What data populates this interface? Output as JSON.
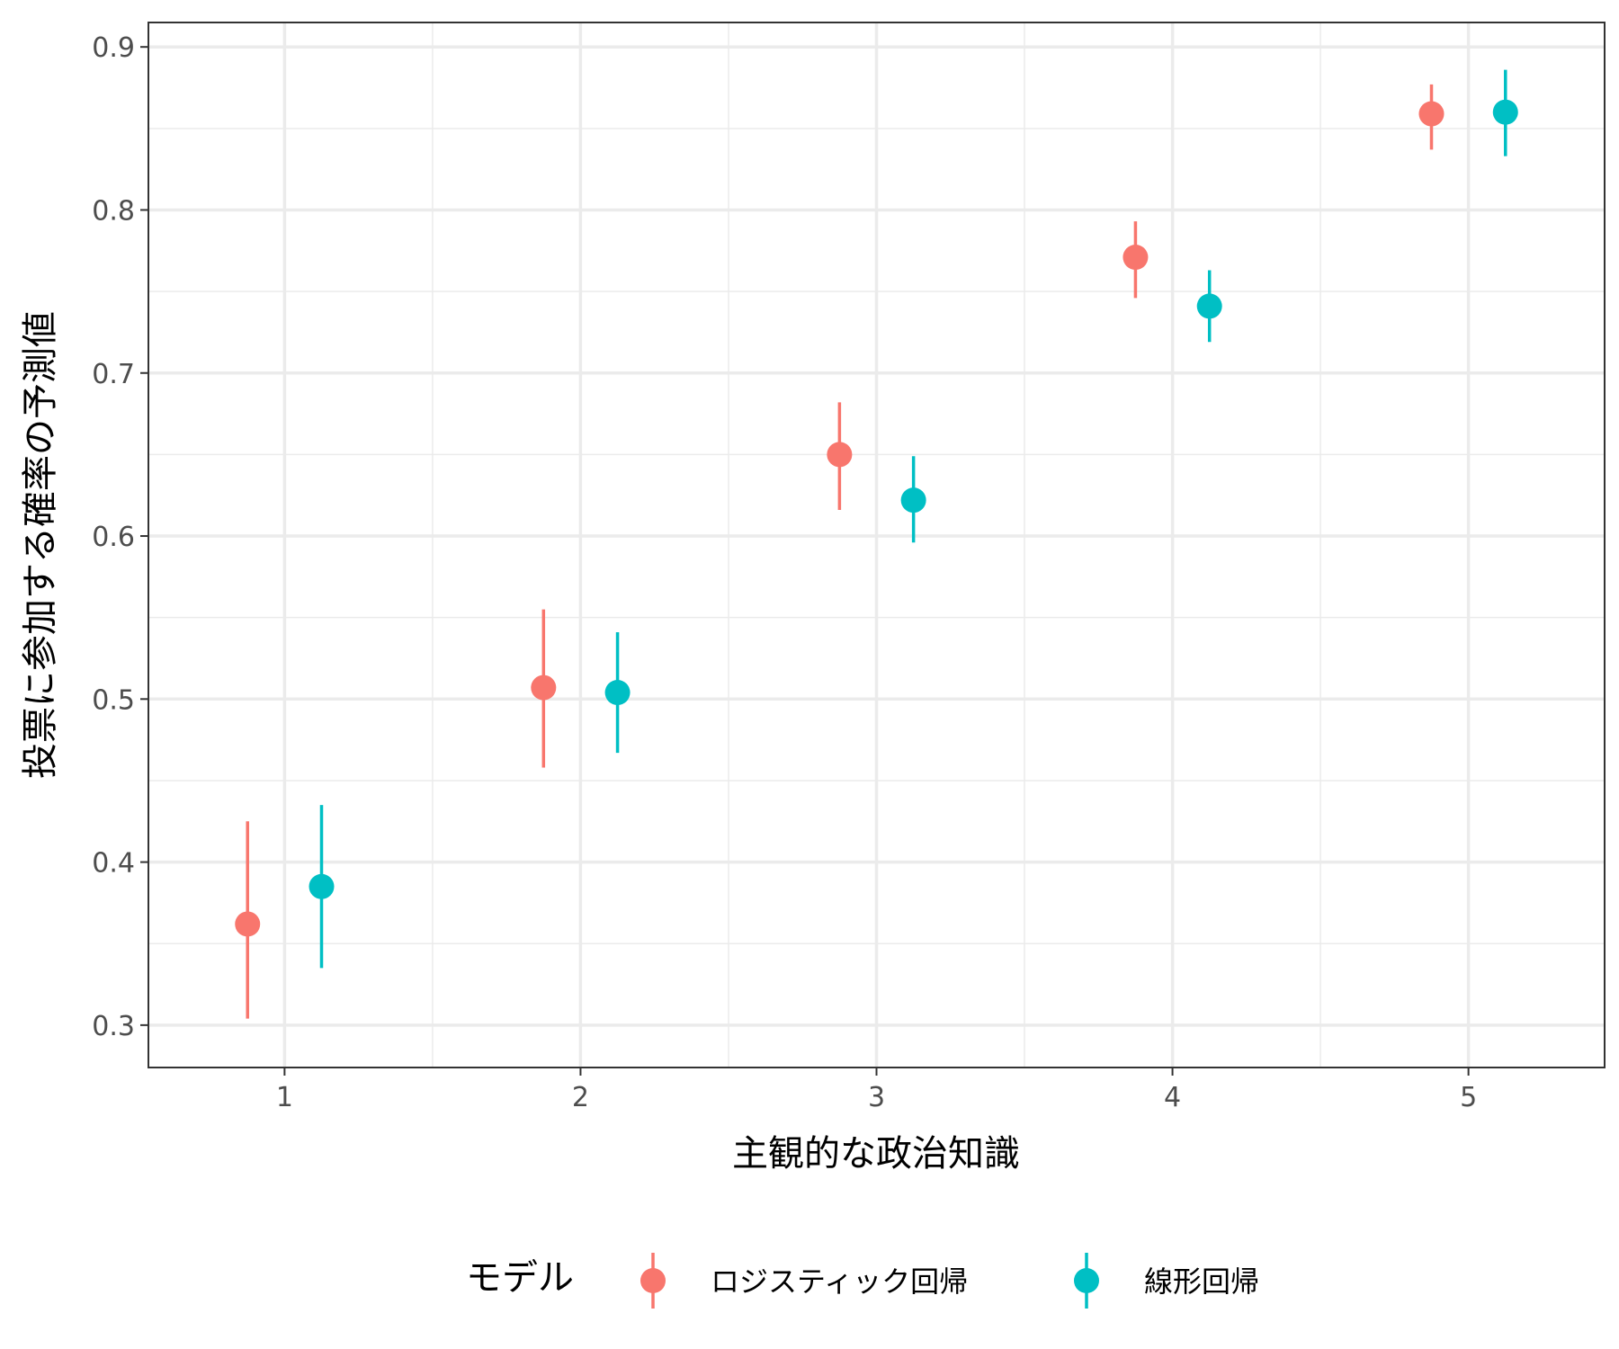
{
  "chart_data": {
    "type": "scatter",
    "subtype": "pointrange",
    "x": [
      1,
      2,
      3,
      4,
      5
    ],
    "xlabel": "主観的な政治知識",
    "ylabel": "投票に参加する確率の予測値",
    "xlim": [
      0.54,
      5.46
    ],
    "ylim": [
      0.274,
      0.915
    ],
    "x_ticks": [
      1,
      2,
      3,
      4,
      5
    ],
    "x_tick_labels": [
      "1",
      "2",
      "3",
      "4",
      "5"
    ],
    "y_ticks": [
      0.3,
      0.4,
      0.5,
      0.6,
      0.7,
      0.8,
      0.9
    ],
    "y_tick_labels": [
      "0.3",
      "0.4",
      "0.5",
      "0.6",
      "0.7",
      "0.8",
      "0.9"
    ],
    "grid": true,
    "dodge": 0.25,
    "legend": {
      "title": "モデル",
      "position": "bottom"
    },
    "series": [
      {
        "name": "ロジスティック回帰",
        "color": "#F8766D",
        "values": [
          0.362,
          0.507,
          0.65,
          0.771,
          0.859
        ],
        "lower": [
          0.304,
          0.458,
          0.616,
          0.746,
          0.837
        ],
        "upper": [
          0.425,
          0.555,
          0.682,
          0.793,
          0.877
        ]
      },
      {
        "name": "線形回帰",
        "color": "#00BFC4",
        "values": [
          0.385,
          0.504,
          0.622,
          0.741,
          0.86
        ],
        "lower": [
          0.335,
          0.467,
          0.596,
          0.719,
          0.833
        ],
        "upper": [
          0.435,
          0.541,
          0.649,
          0.763,
          0.886
        ]
      }
    ]
  }
}
